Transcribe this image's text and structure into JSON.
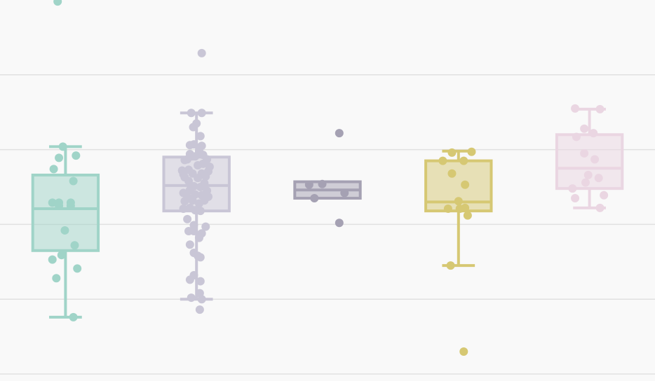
{
  "chart_data": {
    "type": "box",
    "ylim": [
      2.0,
      7.0
    ],
    "gridlines": [
      2.0,
      3.0,
      4.0,
      5.0,
      6.0
    ],
    "groups": [
      {
        "color": "#a0d4c8",
        "box": {
          "whisker_low": 2.76,
          "q1": 3.65,
          "median": 4.21,
          "q3": 4.66,
          "whisker_high": 5.04
        },
        "points": [
          [
            -0.12,
            6.98
          ],
          [
            -0.04,
            5.04
          ],
          [
            0.16,
            4.92
          ],
          [
            -0.1,
            4.89
          ],
          [
            -0.18,
            4.74
          ],
          [
            0.12,
            4.58
          ],
          [
            -0.1,
            4.29
          ],
          [
            -0.2,
            4.29
          ],
          [
            0.08,
            4.29
          ],
          [
            -0.1,
            4.25
          ],
          [
            0.08,
            4.25
          ],
          [
            -0.01,
            3.92
          ],
          [
            0.14,
            3.72
          ],
          [
            -0.06,
            3.59
          ],
          [
            -0.2,
            3.53
          ],
          [
            0.18,
            3.41
          ],
          [
            -0.14,
            3.28
          ],
          [
            0.12,
            2.76
          ]
        ]
      },
      {
        "color": "#c9c6d6",
        "box": {
          "whisker_low": 3.0,
          "q1": 4.18,
          "median": 4.52,
          "q3": 4.9,
          "whisker_high": 5.49
        },
        "points": [
          [
            0.08,
            6.29
          ],
          [
            -0.08,
            5.49
          ],
          [
            0.08,
            5.49
          ],
          [
            0.0,
            5.35
          ],
          [
            -0.05,
            5.3
          ],
          [
            0.06,
            5.18
          ],
          [
            -0.1,
            5.06
          ],
          [
            -0.04,
            5.07
          ],
          [
            0.08,
            5.05
          ],
          [
            -0.1,
            4.94
          ],
          [
            0.04,
            4.98
          ],
          [
            -0.06,
            4.91
          ],
          [
            0.1,
            4.93
          ],
          [
            0.16,
            4.87
          ],
          [
            -0.18,
            4.86
          ],
          [
            -0.14,
            4.87
          ],
          [
            -0.02,
            4.91
          ],
          [
            0.1,
            4.81
          ],
          [
            0.2,
            4.77
          ],
          [
            0.02,
            4.79
          ],
          [
            -0.22,
            4.72
          ],
          [
            -0.12,
            4.73
          ],
          [
            0.18,
            4.71
          ],
          [
            -0.2,
            4.67
          ],
          [
            -0.06,
            4.68
          ],
          [
            0.08,
            4.68
          ],
          [
            0.14,
            4.64
          ],
          [
            -0.18,
            4.63
          ],
          [
            0.02,
            4.62
          ],
          [
            -0.12,
            4.58
          ],
          [
            0.12,
            4.55
          ],
          [
            -0.04,
            4.51
          ],
          [
            0.06,
            4.5
          ],
          [
            -0.1,
            4.46
          ],
          [
            0.16,
            4.45
          ],
          [
            -0.2,
            4.42
          ],
          [
            -0.02,
            4.4
          ],
          [
            0.08,
            4.39
          ],
          [
            -0.14,
            4.37
          ],
          [
            0.18,
            4.37
          ],
          [
            0.12,
            4.32
          ],
          [
            -0.06,
            4.32
          ],
          [
            -0.18,
            4.31
          ],
          [
            0.04,
            4.28
          ],
          [
            -0.1,
            4.22
          ],
          [
            -0.2,
            4.21
          ],
          [
            0.06,
            4.18
          ],
          [
            -0.02,
            4.19
          ],
          [
            -0.14,
            4.07
          ],
          [
            -0.04,
            3.99
          ],
          [
            0.14,
            3.97
          ],
          [
            -0.12,
            3.91
          ],
          [
            -0.04,
            3.91
          ],
          [
            0.08,
            3.88
          ],
          [
            -0.1,
            3.73
          ],
          [
            0.04,
            3.82
          ],
          [
            -0.04,
            3.62
          ],
          [
            0.02,
            3.58
          ],
          [
            0.06,
            3.56
          ],
          [
            -0.04,
            3.32
          ],
          [
            -0.1,
            3.26
          ],
          [
            -0.08,
            3.02
          ],
          [
            0.06,
            3.24
          ],
          [
            0.08,
            3.0
          ],
          [
            0.05,
            3.08
          ],
          [
            0.05,
            2.86
          ]
        ]
      },
      {
        "color": "#a5a1b3",
        "box": {
          "whisker_low": 4.35,
          "q1": 4.35,
          "median": 4.46,
          "q3": 4.57,
          "whisker_high": 4.57
        },
        "points": [
          [
            0.18,
            5.22
          ],
          [
            -0.28,
            4.53
          ],
          [
            -0.08,
            4.54
          ],
          [
            0.26,
            4.42
          ],
          [
            -0.2,
            4.35
          ],
          [
            0.18,
            4.02
          ]
        ]
      },
      {
        "color": "#d6c873",
        "box": {
          "whisker_low": 3.45,
          "q1": 4.18,
          "median": 4.3,
          "q3": 4.85,
          "whisker_high": 4.98
        },
        "points": [
          [
            -0.1,
            4.96
          ],
          [
            0.2,
            4.97
          ],
          [
            0.08,
            4.85
          ],
          [
            -0.24,
            4.85
          ],
          [
            -0.1,
            4.68
          ],
          [
            0.1,
            4.53
          ],
          [
            0.0,
            4.31
          ],
          [
            -0.16,
            4.21
          ],
          [
            0.02,
            4.21
          ],
          [
            0.1,
            4.22
          ],
          [
            0.14,
            4.12
          ],
          [
            -0.12,
            3.45
          ],
          [
            0.08,
            2.3
          ]
        ]
      },
      {
        "color": "#ead6e2",
        "box": {
          "whisker_low": 4.22,
          "q1": 4.48,
          "median": 4.75,
          "q3": 5.2,
          "whisker_high": 5.54
        },
        "points": [
          [
            -0.22,
            5.55
          ],
          [
            0.16,
            5.54
          ],
          [
            -0.08,
            5.28
          ],
          [
            0.06,
            5.22
          ],
          [
            -0.2,
            5.17
          ],
          [
            -0.08,
            4.95
          ],
          [
            0.08,
            4.87
          ],
          [
            -0.02,
            4.66
          ],
          [
            0.14,
            4.62
          ],
          [
            -0.06,
            4.56
          ],
          [
            0.22,
            4.39
          ],
          [
            -0.26,
            4.48
          ],
          [
            -0.22,
            4.35
          ],
          [
            0.16,
            4.22
          ]
        ]
      }
    ]
  }
}
